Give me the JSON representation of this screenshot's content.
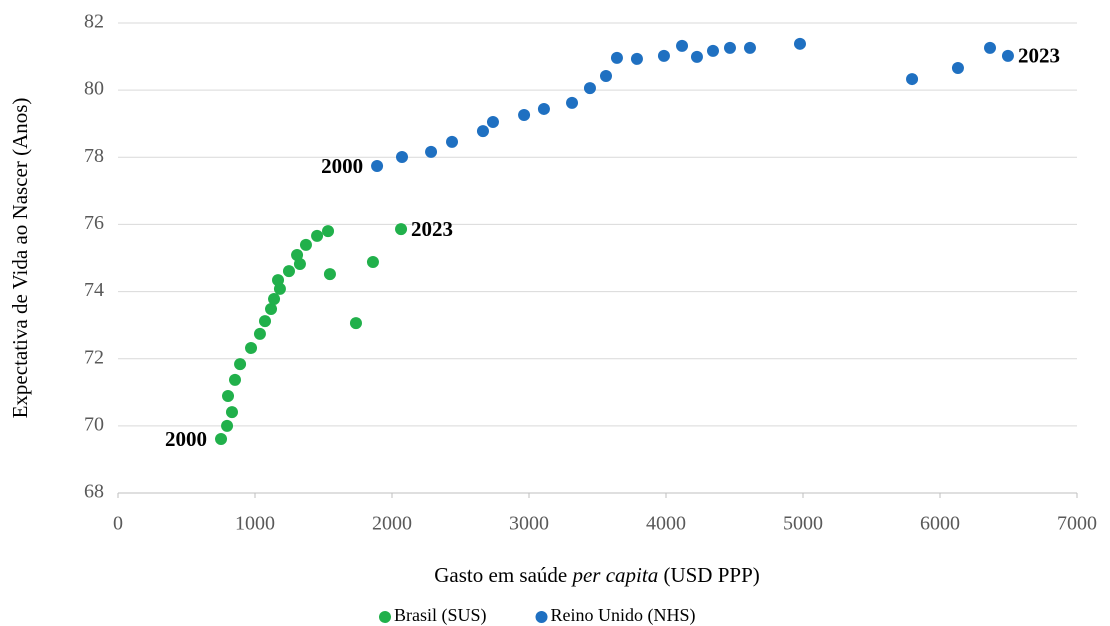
{
  "chart_data": {
    "type": "scatter",
    "xlabel": [
      "Gasto em saúde ",
      "per capita",
      " (USD PPP)"
    ],
    "ylabel": "Expectativa de Vida ao Nascer (Anos)",
    "xlim": [
      0,
      7000
    ],
    "xticks": [
      0,
      1000,
      2000,
      3000,
      4000,
      5000,
      6000,
      7000
    ],
    "ylim": [
      68,
      82
    ],
    "yticks": [
      68,
      70,
      72,
      74,
      76,
      78,
      80,
      82
    ],
    "grid": true,
    "legend": "bottom",
    "annotations": [
      "2000",
      "2023",
      "2000",
      "2023"
    ],
    "series": [
      {
        "name": "Brasil (SUS)",
        "color": "#21b04b",
        "x": [
          752,
          796,
          832,
          803,
          854,
          891,
          971,
          1036,
          1073,
          1117,
          1139,
          1182,
          1168,
          1248,
          1328,
          1307,
          1372,
          1453,
          1533,
          1547,
          1737,
          1861,
          2066
        ],
        "y": [
          69.61,
          70.0,
          70.41,
          70.89,
          71.37,
          71.84,
          72.32,
          72.74,
          73.12,
          73.48,
          73.78,
          74.08,
          74.34,
          74.61,
          74.82,
          75.09,
          75.39,
          75.66,
          75.8,
          74.52,
          73.06,
          74.88,
          75.86
        ]
      },
      {
        "name": "Reino Unido (NHS)",
        "color": "#1f70c1",
        "x": [
          1891,
          2073,
          2285,
          2438,
          2664,
          2737,
          2964,
          3109,
          3314,
          3445,
          3562,
          3642,
          3788,
          3985,
          4117,
          4226,
          4343,
          4467,
          4613,
          4978,
          5796,
          6131,
          6365,
          6496
        ],
        "y": [
          77.74,
          78.01,
          78.16,
          78.46,
          78.78,
          79.05,
          79.26,
          79.44,
          79.62,
          80.06,
          80.42,
          80.96,
          80.93,
          81.02,
          81.32,
          80.99,
          81.17,
          81.26,
          81.26,
          81.38,
          80.33,
          80.66,
          81.26,
          81.02
        ]
      }
    ]
  }
}
